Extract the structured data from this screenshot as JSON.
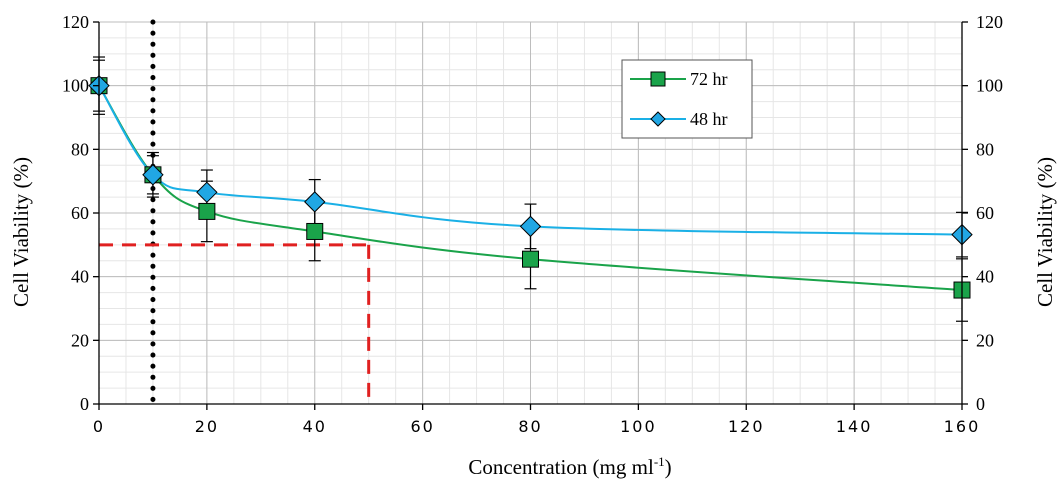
{
  "chart_data": {
    "type": "line",
    "xlabel": "Concentration (mg ml",
    "xlabel_superscript": "-1",
    "xlabel_suffix": ")",
    "ylabel_left": "Cell Viability (%)",
    "ylabel_right": "Cell Viability (%)",
    "xlim": [
      0,
      160
    ],
    "ylim": [
      0,
      120
    ],
    "x_ticks": [
      0,
      20,
      40,
      60,
      80,
      100,
      120,
      140,
      160
    ],
    "y_ticks": [
      0,
      20,
      40,
      60,
      80,
      100,
      120
    ],
    "grid": true,
    "legend_position": "top-right",
    "series": [
      {
        "name": "72 hr",
        "marker": "square",
        "color": "#1aa34a",
        "marker_fill": "#1aa34a",
        "x": [
          0,
          10,
          20,
          40,
          80,
          160
        ],
        "y": [
          100,
          72,
          60.5,
          54.2,
          45.5,
          35.8
        ],
        "error": [
          9,
          6,
          9.5,
          9.2,
          9.3,
          9.8
        ]
      },
      {
        "name": "48 hr",
        "marker": "diamond",
        "color": "#1ab0e6",
        "marker_fill": "#21a7e4",
        "x": [
          0,
          10,
          20,
          40,
          80,
          160
        ],
        "y": [
          100,
          72,
          66.5,
          63.5,
          55.8,
          53.2
        ],
        "error": [
          8,
          7,
          7,
          7,
          7,
          7
        ]
      }
    ],
    "reference_lines": [
      {
        "kind": "vertical",
        "x": 10,
        "style": "dotted",
        "color": "#000000"
      },
      {
        "kind": "ic50",
        "x": 50,
        "y": 50,
        "style": "dashed",
        "color": "#e02020"
      }
    ]
  }
}
